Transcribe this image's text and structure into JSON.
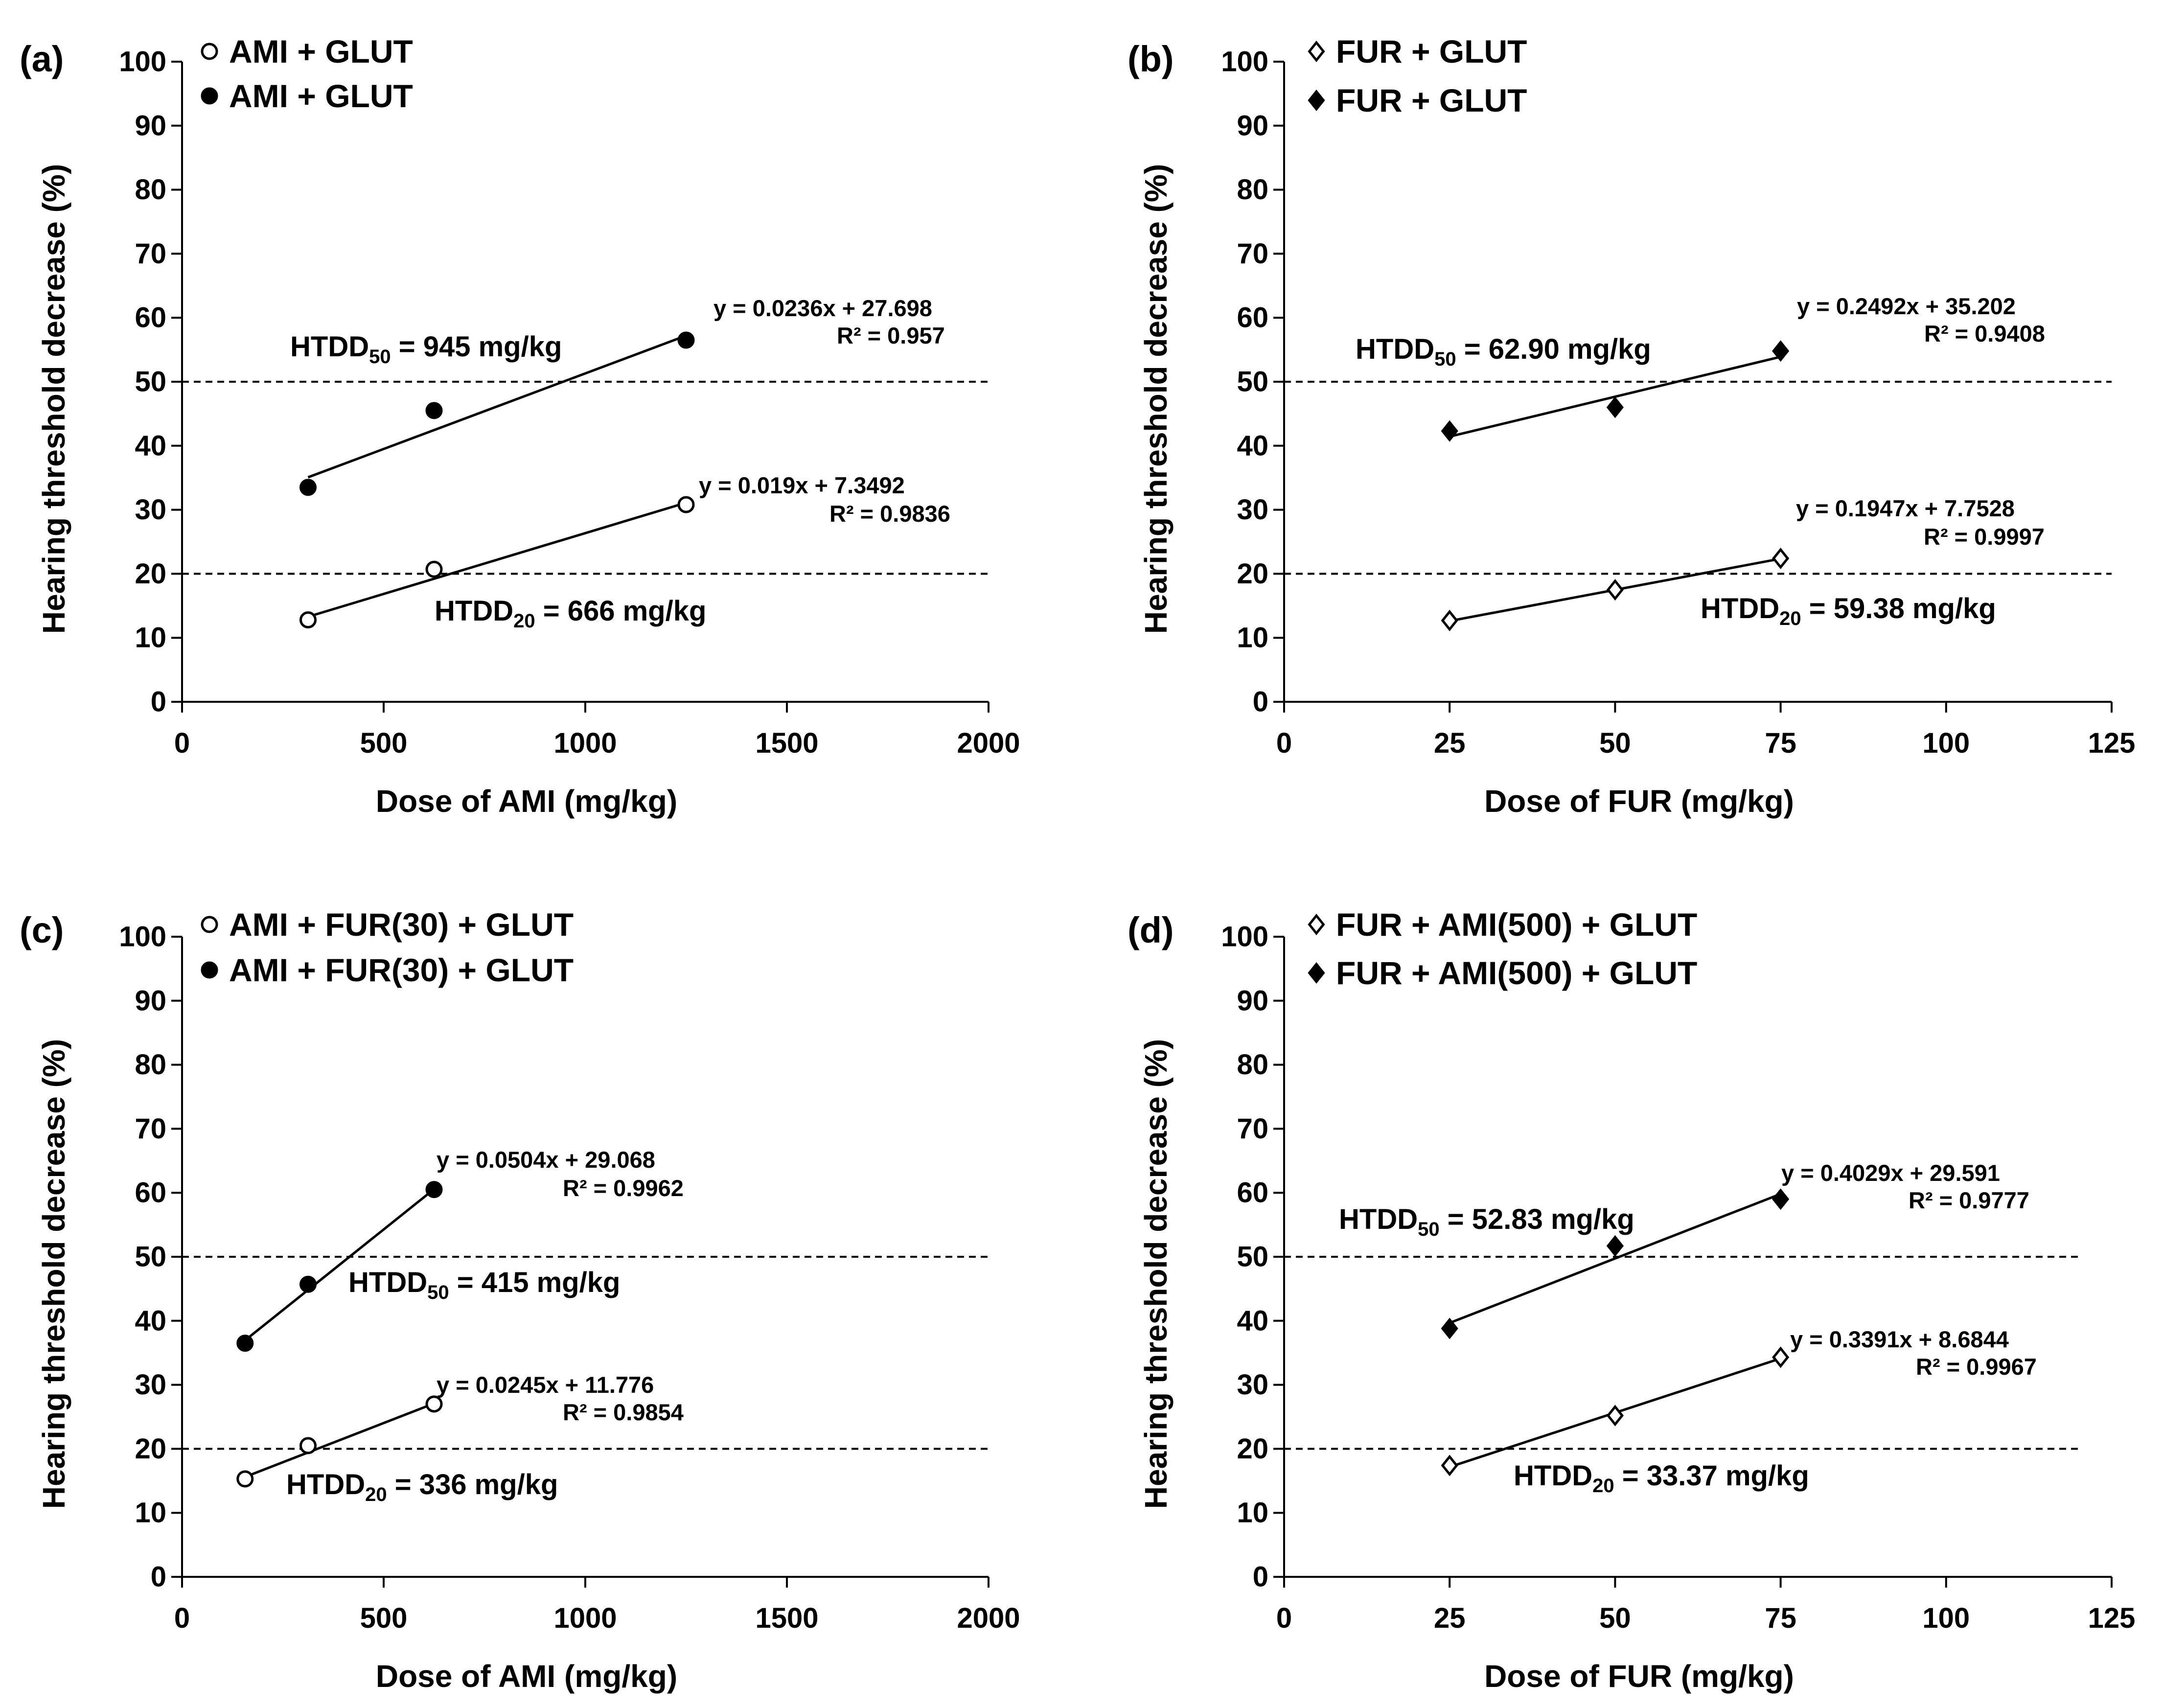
{
  "colors": {
    "ink": "#000000",
    "background": "#ffffff"
  },
  "chart_data": [
    {
      "type": "scatter",
      "panel": "(a)",
      "xlabel": "Dose of AMI (mg/kg)",
      "ylabel": "Hearing threshold decrease (%)",
      "xlim": [
        0,
        2000
      ],
      "xticks": [
        0,
        500,
        1000,
        1500,
        2000
      ],
      "ylim": [
        0,
        100
      ],
      "yticks": [
        0,
        10,
        20,
        30,
        40,
        50,
        60,
        70,
        80,
        90,
        100
      ],
      "reference_lines": [
        50,
        20
      ],
      "marker_shape": "circle",
      "legend": [
        {
          "label": "AMI + GLUT",
          "marker": "open-circle"
        },
        {
          "label": "AMI + GLUT",
          "marker": "filled-circle"
        }
      ],
      "series": [
        {
          "name": "AMI + GLUT",
          "marker": "filled-circle",
          "x": [
            312.5,
            625,
            1250
          ],
          "y": [
            33.5,
            45.5,
            56.5
          ],
          "fit": {
            "slope": 0.0236,
            "intercept": 27.698,
            "equation": "y = 0.0236x + 27.698",
            "r2": "R² = 0.957"
          }
        },
        {
          "name": "AMI + GLUT",
          "marker": "open-circle",
          "x": [
            312.5,
            625,
            1250
          ],
          "y": [
            12.8,
            20.7,
            30.8
          ],
          "fit": {
            "slope": 0.019,
            "intercept": 7.3492,
            "equation": "y = 0.019x + 7.3492",
            "r2": "R² = 0.9836"
          }
        }
      ],
      "htdd": [
        {
          "sub": "50",
          "value": " = 945 mg/kg"
        },
        {
          "sub": "20",
          "value": " = 666 mg/kg"
        }
      ]
    },
    {
      "type": "scatter",
      "panel": "(b)",
      "xlabel": "Dose of FUR (mg/kg)",
      "ylabel": "Hearing threshold decrease (%)",
      "xlim": [
        0,
        125
      ],
      "xticks": [
        0,
        25,
        50,
        75,
        100,
        125
      ],
      "ylim": [
        0,
        100
      ],
      "yticks": [
        0,
        10,
        20,
        30,
        40,
        50,
        60,
        70,
        80,
        90,
        100
      ],
      "reference_lines": [
        50,
        20
      ],
      "marker_shape": "diamond",
      "legend": [
        {
          "label": "FUR + GLUT",
          "marker": "open-diamond"
        },
        {
          "label": "FUR + GLUT",
          "marker": "filled-diamond"
        }
      ],
      "series": [
        {
          "name": "FUR + GLUT",
          "marker": "filled-diamond",
          "x": [
            25,
            50,
            75
          ],
          "y": [
            42.3,
            46.0,
            54.8
          ],
          "fit": {
            "slope": 0.2492,
            "intercept": 35.202,
            "equation": "y = 0.2492x + 35.202",
            "r2": "R² = 0.9408"
          }
        },
        {
          "name": "FUR + GLUT",
          "marker": "open-diamond",
          "x": [
            25,
            50,
            75
          ],
          "y": [
            12.7,
            17.5,
            22.4
          ],
          "fit": {
            "slope": 0.1947,
            "intercept": 7.7528,
            "equation": "y = 0.1947x + 7.7528",
            "r2": "R² = 0.9997"
          }
        }
      ],
      "htdd": [
        {
          "sub": "50",
          "value": " = 62.90 mg/kg"
        },
        {
          "sub": "20",
          "value": " = 59.38 mg/kg"
        }
      ]
    },
    {
      "type": "scatter",
      "panel": "(c)",
      "xlabel": "Dose of AMI (mg/kg)",
      "ylabel": "Hearing threshold decrease (%)",
      "xlim": [
        0,
        2000
      ],
      "xticks": [
        0,
        500,
        1000,
        1500,
        2000
      ],
      "ylim": [
        0,
        100
      ],
      "yticks": [
        0,
        10,
        20,
        30,
        40,
        50,
        60,
        70,
        80,
        90,
        100
      ],
      "reference_lines": [
        50,
        20
      ],
      "marker_shape": "circle",
      "legend": [
        {
          "label": "AMI + FUR(30) + GLUT",
          "marker": "open-circle"
        },
        {
          "label": "AMI + FUR(30) + GLUT",
          "marker": "filled-circle"
        }
      ],
      "series": [
        {
          "name": "AMI + FUR(30) + GLUT",
          "marker": "filled-circle",
          "x": [
            156.25,
            312.5,
            625
          ],
          "y": [
            36.5,
            45.7,
            60.5
          ],
          "fit": {
            "slope": 0.0504,
            "intercept": 29.068,
            "equation": "y = 0.0504x + 29.068",
            "r2": "R² = 0.9962"
          }
        },
        {
          "name": "AMI + FUR(30) + GLUT",
          "marker": "open-circle",
          "x": [
            156.25,
            312.5,
            625
          ],
          "y": [
            15.3,
            20.5,
            27.0
          ],
          "fit": {
            "slope": 0.0245,
            "intercept": 11.776,
            "equation": "y = 0.0245x + 11.776",
            "r2": "R² = 0.9854"
          }
        }
      ],
      "htdd": [
        {
          "sub": "50",
          "value": " = 415 mg/kg"
        },
        {
          "sub": "20",
          "value": " = 336 mg/kg"
        }
      ]
    },
    {
      "type": "scatter",
      "panel": "(d)",
      "xlabel": "Dose of FUR (mg/kg)",
      "ylabel": "Hearing threshold decrease (%)",
      "xlim": [
        0,
        125
      ],
      "xticks": [
        0,
        25,
        50,
        75,
        100,
        125
      ],
      "ylim": [
        0,
        100
      ],
      "yticks": [
        0,
        10,
        20,
        30,
        40,
        50,
        60,
        70,
        80,
        90,
        100
      ],
      "reference_lines": [
        50,
        20
      ],
      "marker_shape": "diamond",
      "legend": [
        {
          "label": "FUR + AMI(500) + GLUT",
          "marker": "open-diamond"
        },
        {
          "label": "FUR + AMI(500) + GLUT",
          "marker": "filled-diamond"
        }
      ],
      "series": [
        {
          "name": "FUR + AMI(500) + GLUT",
          "marker": "filled-diamond",
          "x": [
            25,
            50,
            75
          ],
          "y": [
            38.8,
            51.7,
            59.0
          ],
          "fit": {
            "slope": 0.4029,
            "intercept": 29.591,
            "equation": "y = 0.4029x + 29.591",
            "r2": "R² = 0.9777"
          }
        },
        {
          "name": "FUR + AMI(500) + GLUT",
          "marker": "open-diamond",
          "x": [
            25,
            50,
            75
          ],
          "y": [
            17.4,
            25.2,
            34.3
          ],
          "fit": {
            "slope": 0.3391,
            "intercept": 8.6844,
            "equation": "y = 0.3391x + 8.6844",
            "r2": "R² = 0.9967"
          }
        }
      ],
      "htdd": [
        {
          "sub": "50",
          "value": " = 52.83 mg/kg"
        },
        {
          "sub": "20",
          "value": " = 33.37 mg/kg"
        }
      ]
    }
  ]
}
